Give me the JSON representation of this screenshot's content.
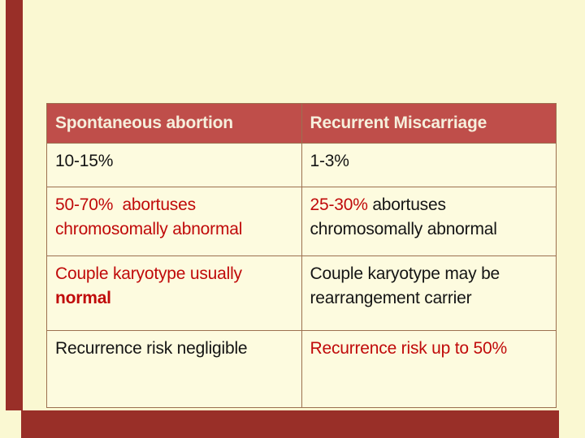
{
  "colors": {
    "background": "#FAF8D2",
    "accent_bar": "#992F28",
    "header_bg": "#BF4E4A",
    "header_text": "#F6EFDC",
    "cell_bg": "#FDFBDF",
    "border": "#9C7050",
    "header_divider": "#A84440",
    "text_black": "#141414",
    "text_red": "#C00A0A"
  },
  "table": {
    "header": {
      "columns": [
        "Spontaneous abortion",
        "Recurrent Miscarriage"
      ]
    },
    "rows": [
      {
        "cells": [
          {
            "lines": [
              [
                {
                  "t": "10-15%"
                }
              ]
            ]
          },
          {
            "lines": [
              [
                {
                  "t": "1-3%"
                }
              ]
            ]
          }
        ]
      },
      {
        "cells": [
          {
            "lines": [
              [
                {
                  "t": "50-70%  abortuses",
                  "red": true
                }
              ],
              [
                {
                  "t": "chromosomally abnormal",
                  "red": true
                }
              ]
            ]
          },
          {
            "lines": [
              [
                {
                  "t": "25-30% ",
                  "red": true
                },
                {
                  "t": "abortuses"
                }
              ],
              [
                {
                  "t": "chromosomally abnormal"
                }
              ]
            ]
          }
        ]
      },
      {
        "cells": [
          {
            "lines": [
              [
                {
                  "t": "Couple karyotype usually",
                  "red": true
                }
              ],
              [
                {
                  "t": "normal",
                  "red": true,
                  "bold": true
                }
              ]
            ]
          },
          {
            "lines": [
              [
                {
                  "t": "Couple karyotype may be"
                }
              ],
              [
                {
                  "t": "rearrangement carrier"
                }
              ]
            ]
          }
        ]
      },
      {
        "cells": [
          {
            "lines": [
              [
                {
                  "t": "Recurrence risk negligible"
                }
              ]
            ]
          },
          {
            "lines": [
              [
                {
                  "t": "Recurrence risk up to 50%",
                  "red": true
                }
              ]
            ]
          }
        ]
      }
    ]
  }
}
